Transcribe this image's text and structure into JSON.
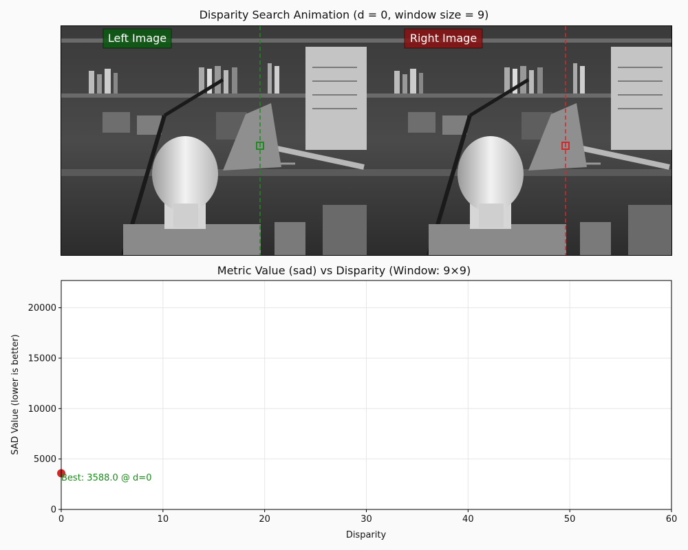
{
  "figure": {
    "top_title": "Disparity Search Animation (d = 0, window size = 9)",
    "bottom_title": "Metric Value (sad) vs Disparity (Window: 9×9)",
    "left_image_label": "Left Image",
    "right_image_label": "Right Image",
    "left_color": "#0b5a12",
    "right_color": "#8b1212"
  },
  "chart_data": {
    "type": "scatter",
    "title": "Metric Value (sad) vs Disparity (Window: 9×9)",
    "xlabel": "Disparity",
    "ylabel": "SAD Value (lower is better)",
    "xlim": [
      0,
      60
    ],
    "ylim": [
      0,
      22700
    ],
    "xticks": [
      0,
      10,
      20,
      30,
      40,
      50,
      60
    ],
    "yticks": [
      0,
      5000,
      10000,
      15000,
      20000
    ],
    "grid": true,
    "series": [
      {
        "x": [
          0
        ],
        "y": [
          3588.0
        ],
        "color": "#d62728"
      }
    ],
    "annotation": "Best: 3588.0 @ d=0",
    "annotation_color": "#1a8a1a"
  }
}
